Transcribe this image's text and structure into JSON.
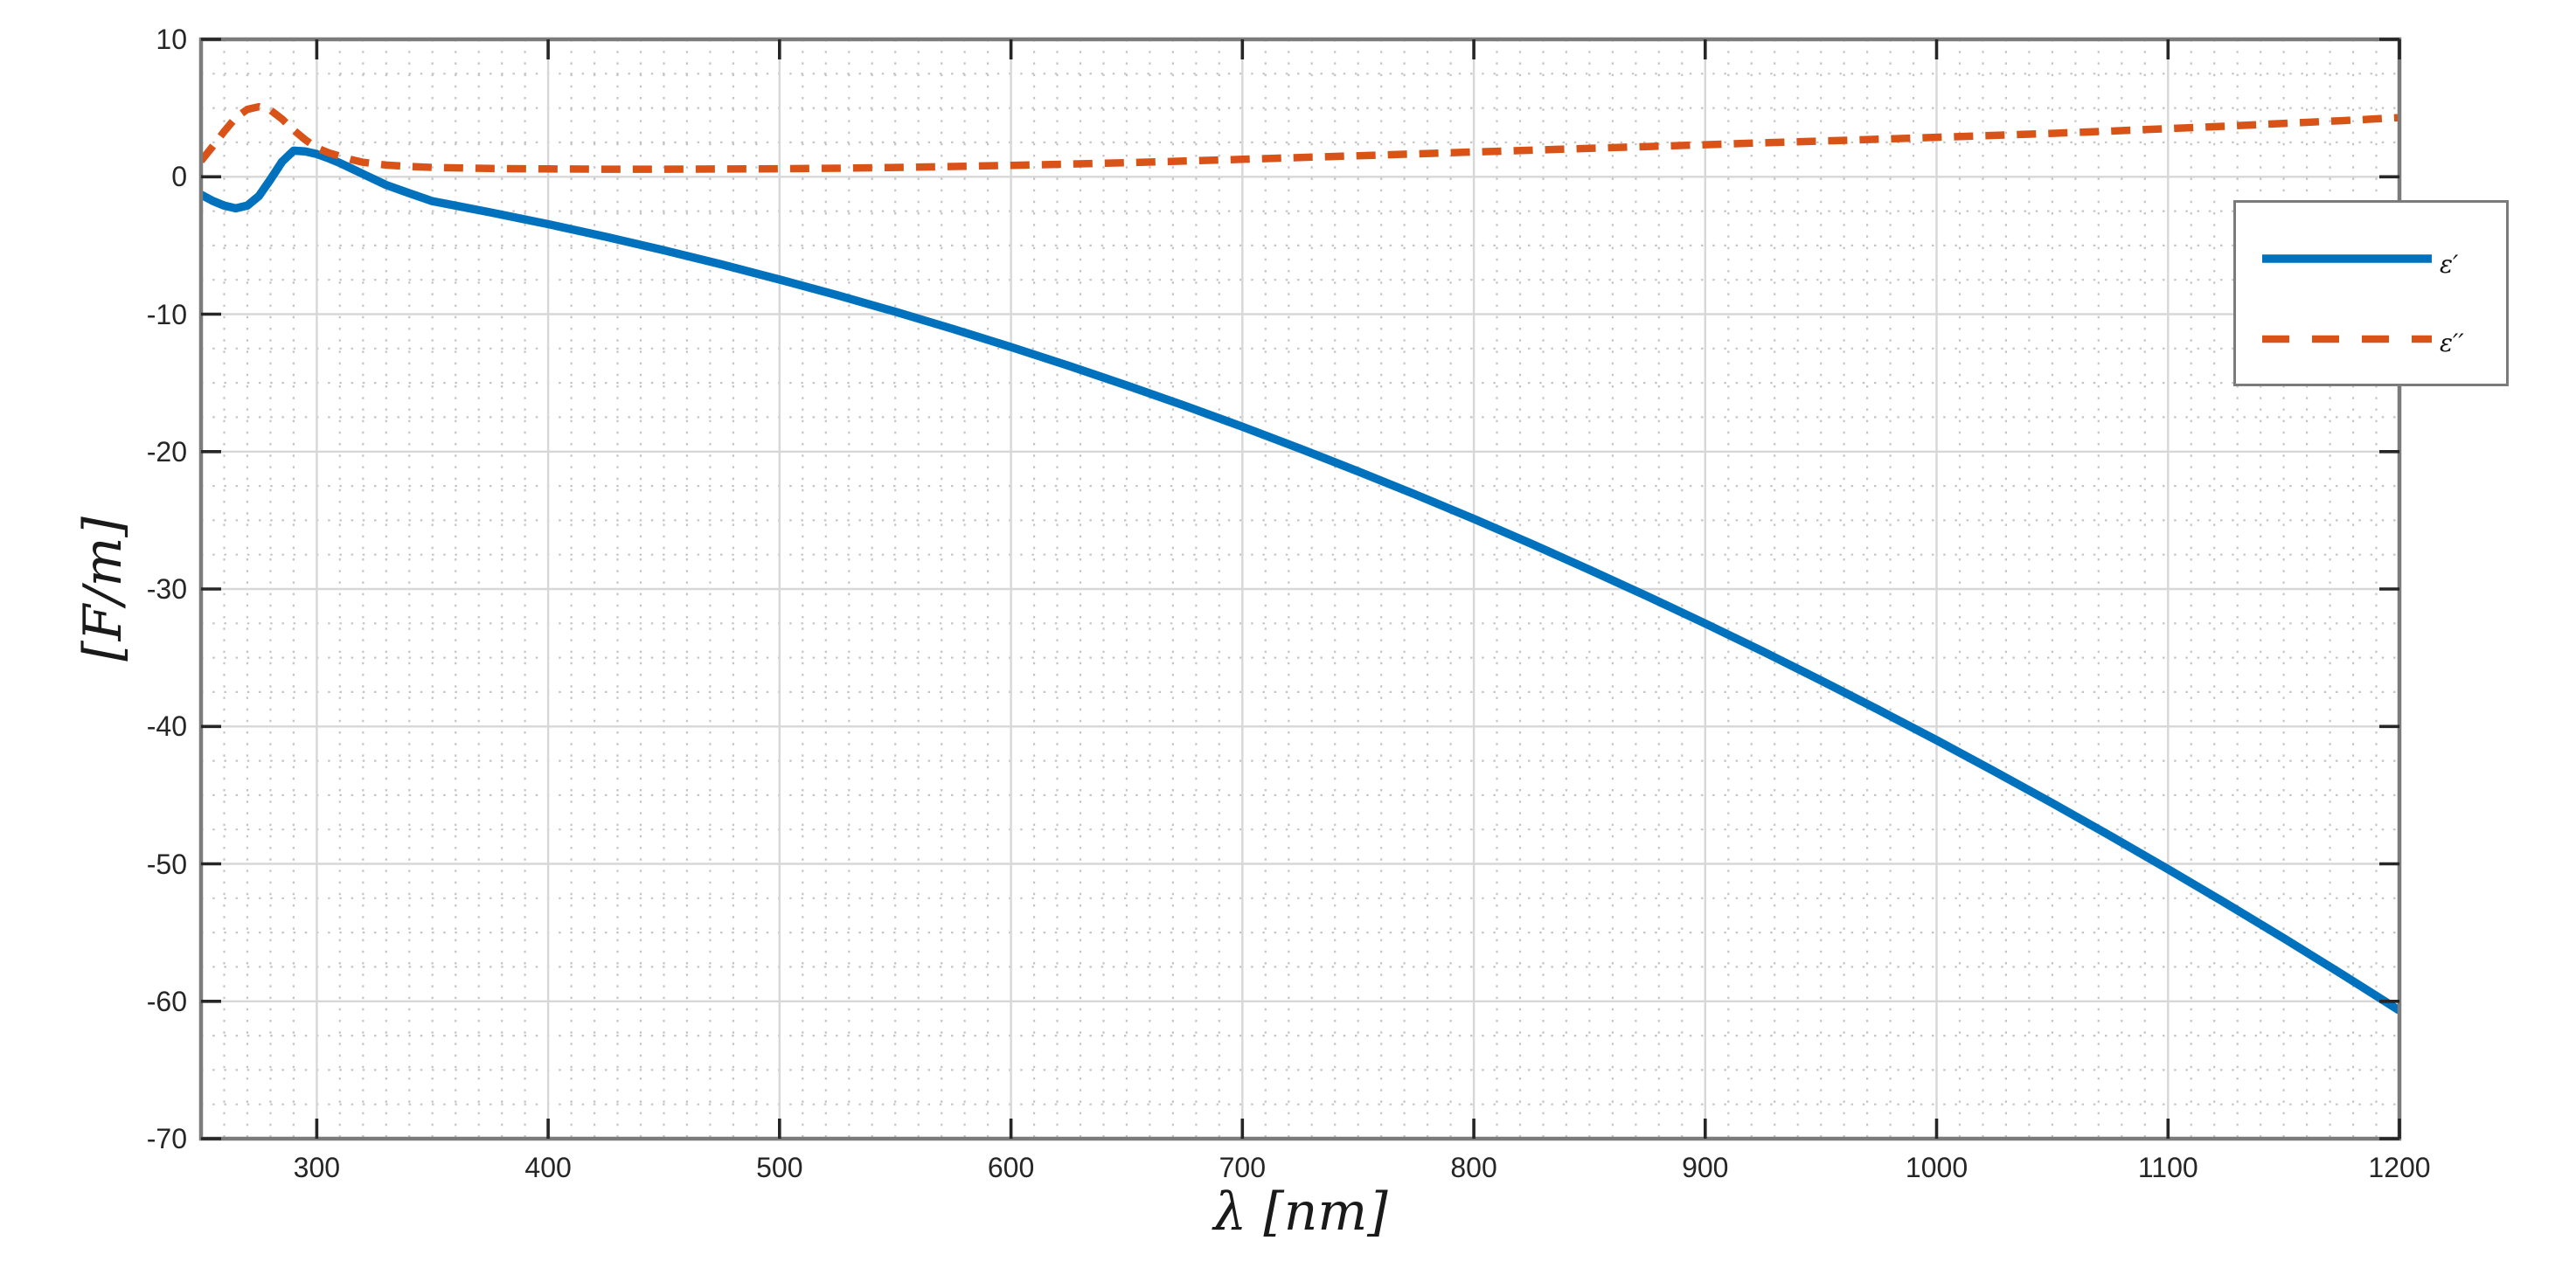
{
  "figure": {
    "background": "#ffffff"
  },
  "axes": {
    "box_color": "#7b7b7b",
    "tick_color": "#262626",
    "tick_label_color": "#262626",
    "major_grid_color": "#d7d7d7",
    "minor_grid_color": "#b0b0b0"
  },
  "chart_data": {
    "type": "line",
    "title": "",
    "xlabel": "λ [nm]",
    "ylabel": "[F/m]",
    "xlim": [
      250,
      1200
    ],
    "ylim": [
      -70,
      10
    ],
    "x_ticks": [
      300,
      400,
      500,
      600,
      700,
      800,
      900,
      1000,
      1100,
      1200
    ],
    "y_ticks": [
      10,
      0,
      -10,
      -20,
      -30,
      -40,
      -50,
      -60,
      -70
    ],
    "x_minor_step": 10,
    "y_minor_step": 2.5,
    "grid": {
      "major": "solid",
      "minor": "dotted",
      "grid_on": true
    },
    "legend": {
      "position": "top-right",
      "border_color": "#7b7b7b"
    },
    "x": [
      250,
      255,
      260,
      265,
      270,
      275,
      280,
      285,
      290,
      295,
      300,
      305,
      310,
      315,
      320,
      325,
      330,
      340,
      350,
      375,
      400,
      425,
      450,
      475,
      500,
      525,
      550,
      575,
      600,
      625,
      650,
      675,
      700,
      725,
      750,
      775,
      800,
      825,
      850,
      875,
      900,
      925,
      950,
      975,
      1000,
      1025,
      1050,
      1075,
      1100,
      1125,
      1150,
      1175,
      1200
    ],
    "series": [
      {
        "name": "ε′",
        "color": "#0072BD",
        "style": "solid",
        "line_width": 9.5,
        "values": [
          -1.3,
          -1.75,
          -2.1,
          -2.3,
          -2.1,
          -1.4,
          -0.2,
          1.1,
          1.9,
          1.85,
          1.65,
          1.35,
          1.0,
          0.6,
          0.2,
          -0.2,
          -0.6,
          -1.2,
          -1.78,
          -2.59,
          -3.45,
          -4.37,
          -5.35,
          -6.38,
          -7.48,
          -8.62,
          -9.82,
          -11.08,
          -12.39,
          -13.76,
          -15.18,
          -16.66,
          -18.19,
          -19.79,
          -21.44,
          -23.14,
          -24.9,
          -26.72,
          -28.6,
          -30.53,
          -32.51,
          -34.55,
          -36.65,
          -38.8,
          -41.0,
          -43.27,
          -45.58,
          -47.96,
          -50.39,
          -52.87,
          -55.41,
          -58.01,
          -60.67
        ]
      },
      {
        "name": "ε′′",
        "color": "#D95319",
        "style": "dashed",
        "line_width": 8.5,
        "values": [
          1.15,
          2.2,
          3.3,
          4.3,
          4.9,
          5.1,
          4.85,
          4.2,
          3.4,
          2.7,
          2.1,
          1.75,
          1.5,
          1.25,
          1.05,
          0.95,
          0.85,
          0.75,
          0.68,
          0.6,
          0.57,
          0.55,
          0.55,
          0.56,
          0.58,
          0.62,
          0.68,
          0.75,
          0.83,
          0.92,
          1.02,
          1.14,
          1.27,
          1.4,
          1.53,
          1.66,
          1.8,
          1.93,
          2.07,
          2.2,
          2.33,
          2.47,
          2.6,
          2.73,
          2.87,
          3.01,
          3.16,
          3.32,
          3.5,
          3.68,
          3.88,
          4.08,
          4.3
        ]
      }
    ]
  }
}
